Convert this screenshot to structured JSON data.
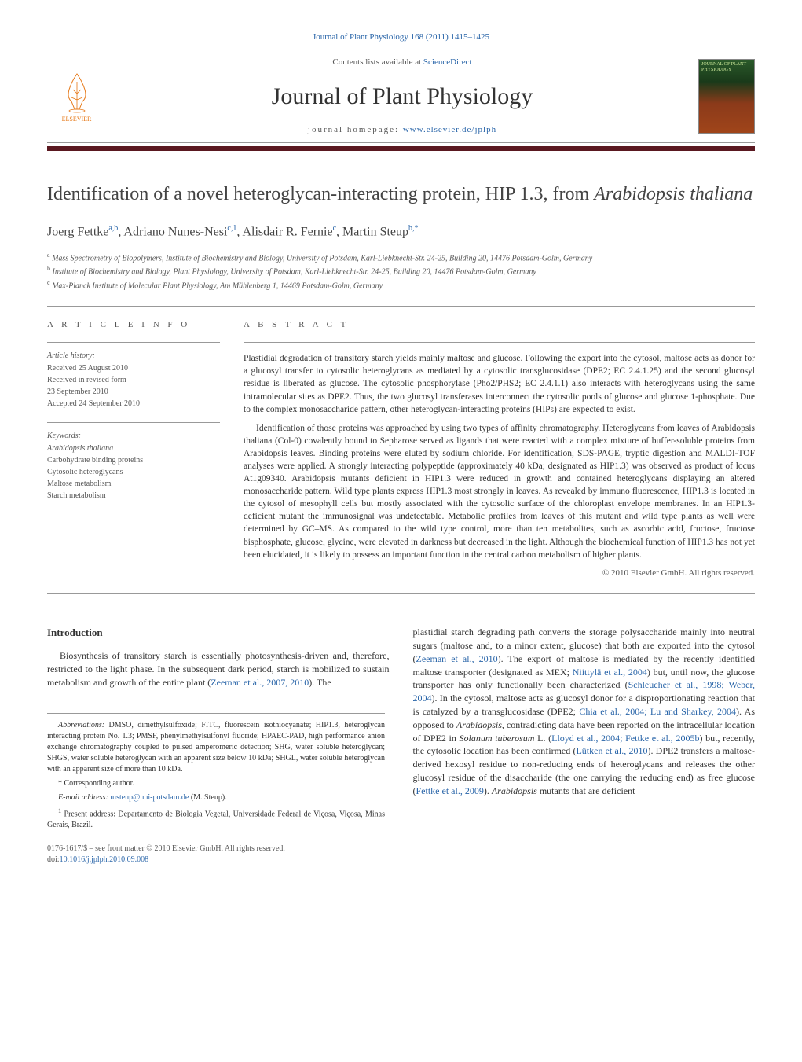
{
  "header": {
    "citation": "Journal of Plant Physiology 168 (2011) 1415–1425",
    "sciencedirect_prefix": "Contents lists available at ",
    "sciencedirect_link": "ScienceDirect",
    "journal_name": "Journal of Plant Physiology",
    "homepage_prefix": "journal homepage: ",
    "homepage_url": "www.elsevier.de/jplph",
    "elsevier_label": "ELSEVIER",
    "cover_text": "JOURNAL OF PLANT PHYSIOLOGY"
  },
  "colors": {
    "link": "#2864a8",
    "rule": "#5a1820",
    "elsevier_orange": "#e67817",
    "text": "#333333",
    "muted": "#555555",
    "border": "#999999"
  },
  "article": {
    "title_html": "Identification of a novel heteroglycan-interacting protein, HIP 1.3, from <em>Arabidopsis thaliana</em>",
    "authors_html": "Joerg Fettke<sup>a,b</sup>, Adriano Nunes-Nesi<sup>c,1</sup>, Alisdair R. Fernie<sup>c</sup>, Martin Steup<sup>b,*</sup>",
    "affiliations": [
      "a Mass Spectrometry of Biopolymers, Institute of Biochemistry and Biology, University of Potsdam, Karl-Liebknecht-Str. 24-25, Building 20, 14476 Potsdam-Golm, Germany",
      "b Institute of Biochemistry and Biology, Plant Physiology, University of Potsdam, Karl-Liebknecht-Str. 24-25, Building 20, 14476 Potsdam-Golm, Germany",
      "c Max-Planck Institute of Molecular Plant Physiology, Am Mühlenberg 1, 14469 Potsdam-Golm, Germany"
    ]
  },
  "info": {
    "heading": "A R T I C L E  I N F O",
    "history_label": "Article history:",
    "history": [
      "Received 25 August 2010",
      "Received in revised form",
      "23 September 2010",
      "Accepted 24 September 2010"
    ],
    "keywords_label": "Keywords:",
    "keywords": [
      "Arabidopsis thaliana",
      "Carbohydrate binding proteins",
      "Cytosolic heteroglycans",
      "Maltose metabolism",
      "Starch metabolism"
    ]
  },
  "abstract": {
    "heading": "A B S T R A C T",
    "p1": "Plastidial degradation of transitory starch yields mainly maltose and glucose. Following the export into the cytosol, maltose acts as donor for a glucosyl transfer to cytosolic heteroglycans as mediated by a cytosolic transglucosidase (DPE2; EC 2.4.1.25) and the second glucosyl residue is liberated as glucose. The cytosolic phosphorylase (Pho2/PHS2; EC 2.4.1.1) also interacts with heteroglycans using the same intramolecular sites as DPE2. Thus, the two glucosyl transferases interconnect the cytosolic pools of glucose and glucose 1-phosphate. Due to the complex monosaccharide pattern, other heteroglycan-interacting proteins (HIPs) are expected to exist.",
    "p2": "Identification of those proteins was approached by using two types of affinity chromatography. Heteroglycans from leaves of Arabidopsis thaliana (Col-0) covalently bound to Sepharose served as ligands that were reacted with a complex mixture of buffer-soluble proteins from Arabidopsis leaves. Binding proteins were eluted by sodium chloride. For identification, SDS-PAGE, tryptic digestion and MALDI-TOF analyses were applied. A strongly interacting polypeptide (approximately 40 kDa; designated as HIP1.3) was observed as product of locus At1g09340. Arabidopsis mutants deficient in HIP1.3 were reduced in growth and contained heteroglycans displaying an altered monosaccharide pattern. Wild type plants express HIP1.3 most strongly in leaves. As revealed by immuno fluorescence, HIP1.3 is located in the cytosol of mesophyll cells but mostly associated with the cytosolic surface of the chloroplast envelope membranes. In an HIP1.3-deficient mutant the immunosignal was undetectable. Metabolic profiles from leaves of this mutant and wild type plants as well were determined by GC–MS. As compared to the wild type control, more than ten metabolites, such as ascorbic acid, fructose, fructose bisphosphate, glucose, glycine, were elevated in darkness but decreased in the light. Although the biochemical function of HIP1.3 has not yet been elucidated, it is likely to possess an important function in the central carbon metabolism of higher plants.",
    "copyright": "© 2010 Elsevier GmbH. All rights reserved."
  },
  "intro": {
    "heading": "Introduction",
    "col1_html": "Biosynthesis of transitory starch is essentially photosynthesis-driven and, therefore, restricted to the light phase. In the subsequent dark period, starch is mobilized to sustain metabolism and growth of the entire plant (<a href='#'>Zeeman et al., 2007, 2010</a>). The",
    "col2_html": "plastidial starch degrading path converts the storage polysaccharide mainly into neutral sugars (maltose and, to a minor extent, glucose) that both are exported into the cytosol (<a href='#'>Zeeman et al., 2010</a>). The export of maltose is mediated by the recently identified maltose transporter (designated as MEX; <a href='#'>Niittylä et al., 2004</a>) but, until now, the glucose transporter has only functionally been characterized (<a href='#'>Schleucher et al., 1998; Weber, 2004</a>). In the cytosol, maltose acts as glucosyl donor for a disproportionating reaction that is catalyzed by a transglucosidase (DPE2; <a href='#'>Chia et al., 2004; Lu and Sharkey, 2004</a>). As opposed to <em>Arabidopsis</em>, contradicting data have been reported on the intracellular location of DPE2 in <em>Solanum tuberosum</em> L. (<a href='#'>Lloyd et al., 2004; Fettke et al., 2005b</a>) but, recently, the cytosolic location has been confirmed (<a href='#'>Lütken et al., 2010</a>). DPE2 transfers a maltose-derived hexosyl residue to non-reducing ends of heteroglycans and releases the other glucosyl residue of the disaccharide (the one carrying the reducing end) as free glucose (<a href='#'>Fettke et al., 2009</a>). <em>Arabidopsis</em> mutants that are deficient"
  },
  "footnotes": {
    "abbrev_label": "Abbreviations:",
    "abbrev_text": " DMSO, dimethylsulfoxide; FITC, fluorescein isothiocyanate; HIP1.3, heteroglycan interacting protein No. 1.3; PMSF, phenylmethylsulfonyl fluoride; HPAEC-PAD, high performance anion exchange chromatography coupled to pulsed amperomeric detection; SHG, water soluble heteroglycan; SHGS, water soluble heteroglycan with an apparent size below 10 kDa; SHGL, water soluble heteroglycan with an apparent size of more than 10 kDa.",
    "corr_label": "* Corresponding author.",
    "email_label": "E-mail address: ",
    "email": "msteup@uni-potsdam.de",
    "email_suffix": " (M. Steup).",
    "present_label": "1",
    "present_text": " Present address: Departamento de Biologia Vegetal, Universidade Federal de Viçosa, Viçosa, Minas Gerais, Brazil."
  },
  "doi": {
    "line1": "0176-1617/$ – see front matter © 2010 Elsevier GmbH. All rights reserved.",
    "line2_prefix": "doi:",
    "line2_link": "10.1016/j.jplph.2010.09.008"
  }
}
